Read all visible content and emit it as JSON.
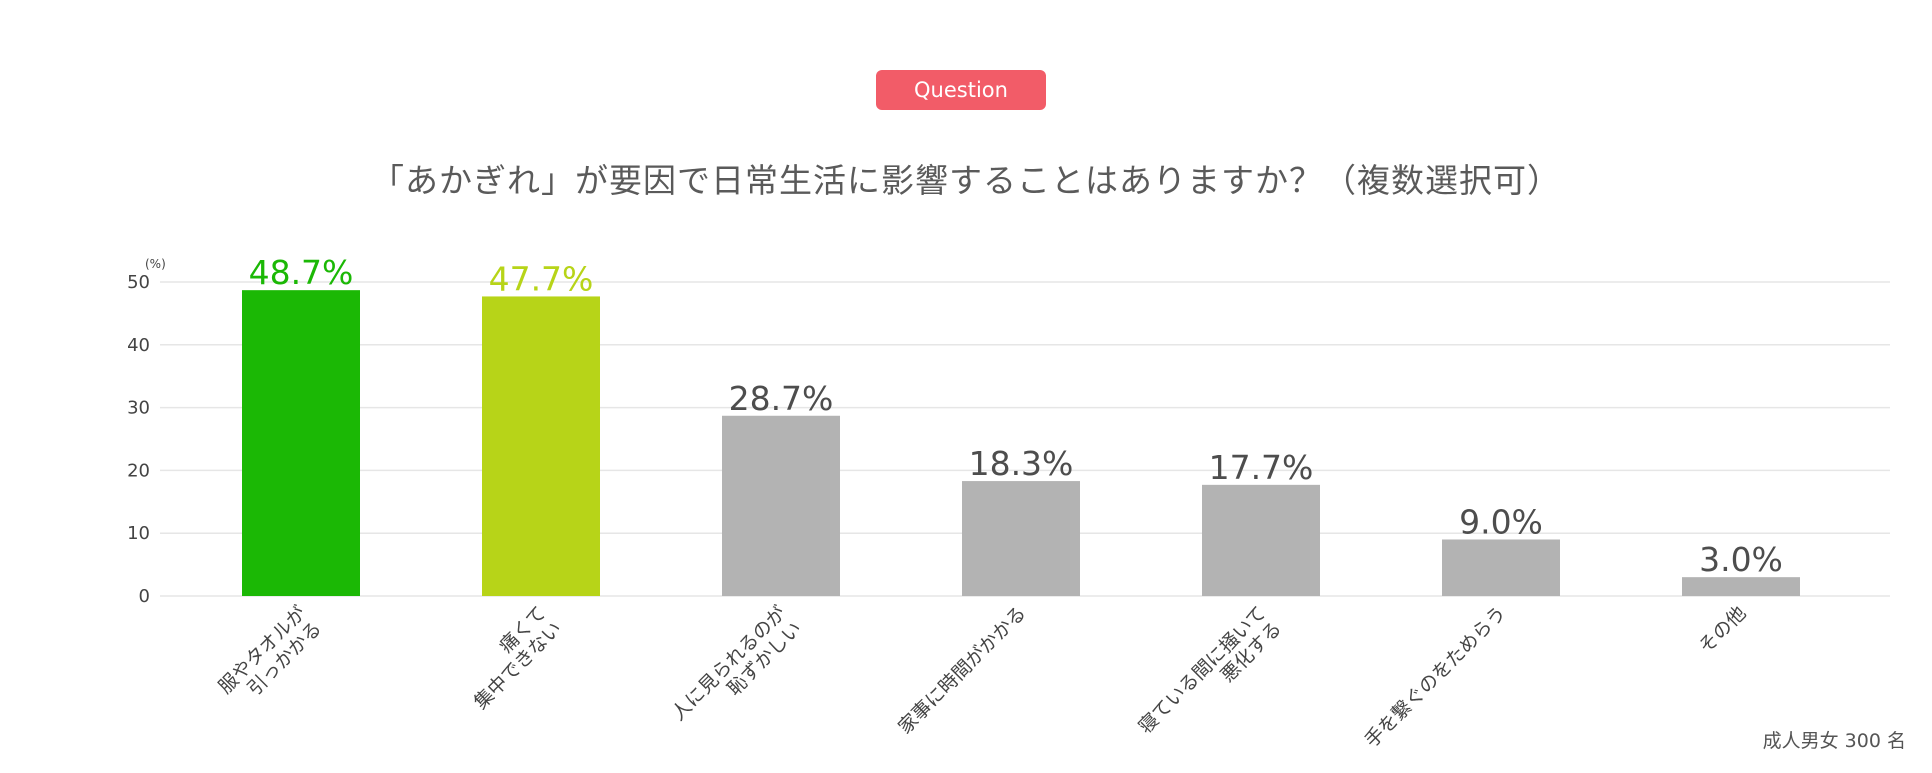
{
  "badge": "Question",
  "title": "「あかぎれ」が要因で日常生活に影響することはありますか？（複数選択可）",
  "footnote": "成人男女 300 名",
  "colors": {
    "badge_bg": "#f25c68",
    "bar_primary": "#1bb805",
    "bar_secondary": "#b7d418",
    "bar_neutral": "#b3b3b3",
    "grid": "#e6e6e6",
    "label_dark": "#4d4d4d"
  },
  "chart_data": {
    "type": "bar",
    "title": "「あかぎれ」が要因で日常生活に影響することはありますか？（複数選択可）",
    "ylabel": "(%)",
    "ylim": [
      0,
      50
    ],
    "yticks": [
      0,
      10,
      20,
      30,
      40,
      50
    ],
    "grid": true,
    "categories": [
      [
        "服やタオルが",
        "引っかかる"
      ],
      [
        "痛くて",
        "集中できない"
      ],
      [
        "人に見られるのが",
        "恥ずかしい"
      ],
      [
        "家事に時間がかかる"
      ],
      [
        "寝ている間に掻いて",
        "悪化する"
      ],
      [
        "手を繋ぐのをためらう"
      ],
      [
        "その他"
      ]
    ],
    "values": [
      48.7,
      47.7,
      28.7,
      18.3,
      17.7,
      9.0,
      3.0
    ],
    "value_labels": [
      "48.7%",
      "47.7%",
      "28.7%",
      "18.3%",
      "17.7%",
      "9.0%",
      "3.0%"
    ],
    "bar_colors": [
      "#1bb805",
      "#b7d418",
      "#b3b3b3",
      "#b3b3b3",
      "#b3b3b3",
      "#b3b3b3",
      "#b3b3b3"
    ],
    "label_colors": [
      "#1bb805",
      "#b7d418",
      "#4d4d4d",
      "#4d4d4d",
      "#4d4d4d",
      "#4d4d4d",
      "#4d4d4d"
    ]
  }
}
